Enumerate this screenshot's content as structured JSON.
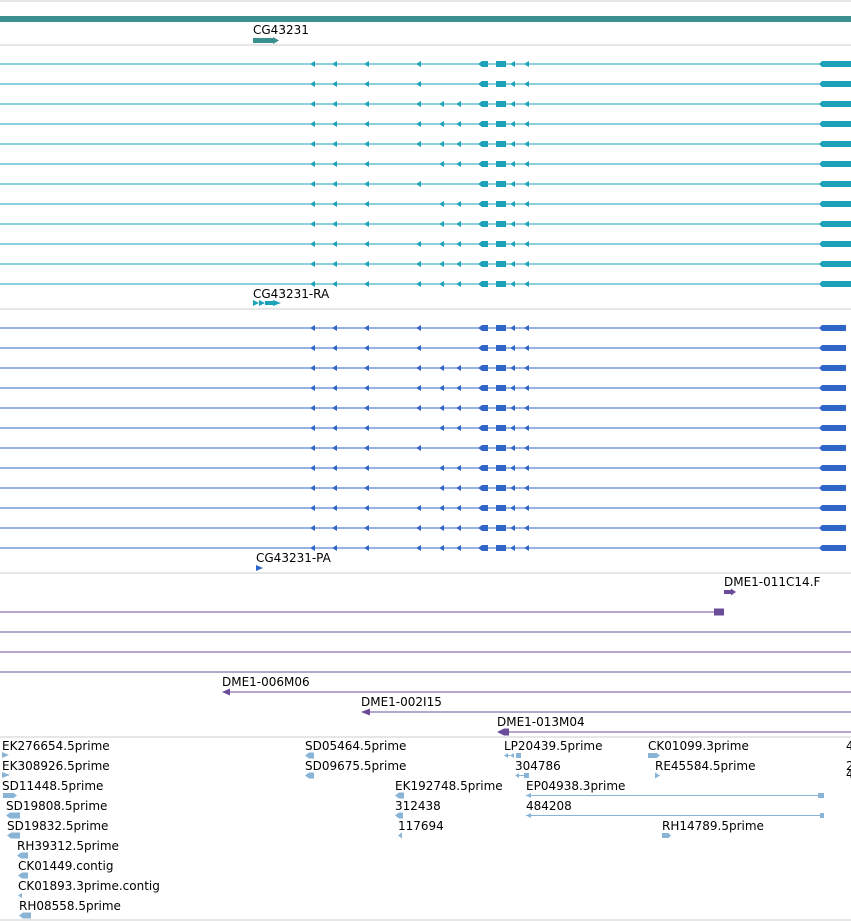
{
  "colors": {
    "gene": "#3a8f8f",
    "mrna": "#1ba2b9",
    "protein": "#2f66c8",
    "clone": "#6b4c9a",
    "est": "#8ab4d6",
    "divider": "#cccccc"
  },
  "gene_track": {
    "label": "CG43231"
  },
  "mrna_track": {
    "label": "CG43231-RA",
    "row_count": 12
  },
  "protein_track": {
    "label": "CG43231-PA",
    "row_count": 12
  },
  "clone_track": {
    "labels": [
      "DME1-011C14.F",
      "DME1-006M06",
      "DME1-002I15",
      "DME1-013M04"
    ]
  },
  "est_track": {
    "labels": [
      "EK276654.5prime",
      "EK308926.5prime",
      "SD11448.5prime",
      "SD19808.5prime",
      "SD19832.5prime",
      "RH39312.5prime",
      "CK01449.contig",
      "CK01893.3prime.contig",
      "RH08558.5prime",
      "SD05464.5prime",
      "SD09675.5prime",
      "EK192748.5prime",
      "312438",
      "117694",
      "LP20439.5prime",
      "304786",
      "EP04938.3prime",
      "484208",
      "CK01099.3prime",
      "RE45584.5prime",
      "RH14789.5prime",
      "4",
      "2",
      "4"
    ]
  }
}
